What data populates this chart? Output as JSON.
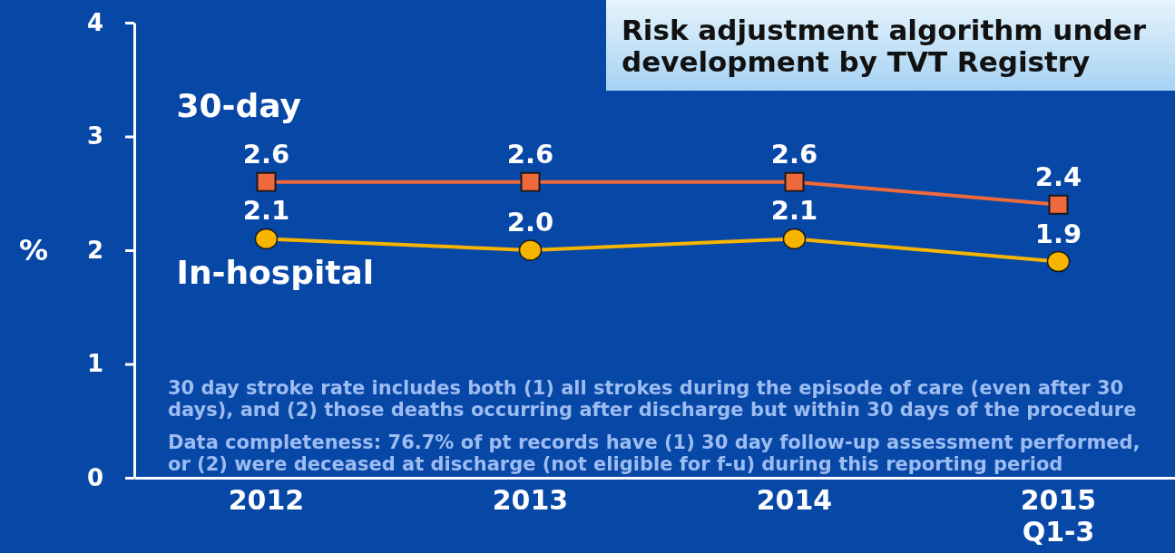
{
  "chart_data": {
    "type": "line",
    "title": "Risk adjustment algorithm under\ndevelopment by TVT Registry",
    "ylabel": "%",
    "categories": [
      "2012",
      "2013",
      "2014",
      "2015\nQ1-3"
    ],
    "series": [
      {
        "name": "30-day",
        "color": "#ee6a3c",
        "marker": "square",
        "values": [
          2.6,
          2.6,
          2.6,
          2.4
        ],
        "value_labels": [
          "2.6",
          "2.6",
          "2.6",
          "2.4"
        ]
      },
      {
        "name": "In-hospital",
        "color": "#f7b500",
        "marker": "circle",
        "values": [
          2.1,
          2.0,
          2.1,
          1.9
        ],
        "value_labels": [
          "2.1",
          "2.0",
          "2.1",
          "1.9"
        ]
      }
    ],
    "ylim": [
      0,
      4
    ],
    "yticks": [
      0,
      1,
      2,
      3,
      4
    ],
    "annotations": [
      "30 day stroke rate includes both (1) all strokes during the episode of care (even after 30\ndays), and (2) those deaths occurring after discharge but within 30 days of the procedure",
      "Data completeness: 76.7% of pt records have (1) 30 day follow-up assessment performed,\nor (2) were deceased at discharge (not eligible for f-u) during this reporting period"
    ]
  }
}
